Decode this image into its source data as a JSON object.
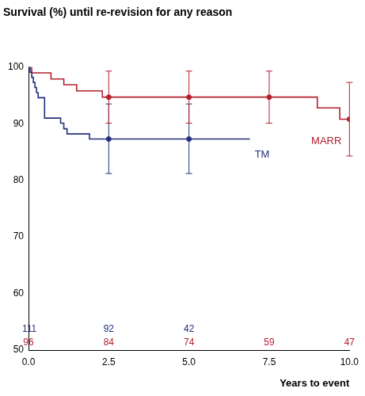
{
  "chart_data": {
    "type": "line",
    "title": "Survival (%) until re-revision for any reason",
    "x_label": "Years to event",
    "xlim": [
      0,
      10
    ],
    "xticks": [
      {
        "value": 0,
        "label": "0.0"
      },
      {
        "value": 2.5,
        "label": "2.5"
      },
      {
        "value": 5,
        "label": "5.0"
      },
      {
        "value": 7.5,
        "label": "7.5"
      },
      {
        "value": 10,
        "label": "10.0"
      }
    ],
    "ylim": [
      50,
      100
    ],
    "yticks": [
      50,
      60,
      70,
      80,
      90,
      100
    ],
    "grid": false,
    "series": [
      {
        "name": "TM",
        "color": "#23317a",
        "line_style": "step",
        "marker": "circle",
        "x": [
          0,
          0.05,
          0.1,
          0.15,
          0.2,
          0.25,
          0.3,
          0.5,
          1.0,
          1.1,
          1.2,
          1.9,
          6.9
        ],
        "values": [
          100,
          99.1,
          98.2,
          97.3,
          96.4,
          95.5,
          94.6,
          91.0,
          90.1,
          89.1,
          88.2,
          87.3,
          87.3
        ],
        "ci_x": [
          2.5,
          5
        ],
        "ci_values": [
          87.3,
          87.3
        ],
        "ci_low": [
          81.2,
          81.2
        ],
        "ci_high": [
          93.5,
          93.5
        ],
        "at_risk_x": [
          0,
          2.5,
          5
        ],
        "at_risk": [
          111,
          92,
          42
        ]
      },
      {
        "name": "MARR",
        "color": "#b5202e",
        "line_style": "step",
        "marker": "circle",
        "x": [
          0,
          0.1,
          0.7,
          1.1,
          1.5,
          2.3,
          9.0,
          9.7,
          10.0
        ],
        "values": [
          100,
          99.0,
          97.9,
          96.9,
          95.8,
          94.7,
          92.8,
          90.8,
          90.8
        ],
        "ci_x": [
          2.5,
          5,
          7.5,
          10
        ],
        "ci_values": [
          94.7,
          94.7,
          94.7,
          90.8
        ],
        "ci_low": [
          90.1,
          90.1,
          90.1,
          84.3
        ],
        "ci_high": [
          99.3,
          99.3,
          99.3,
          97.3
        ],
        "at_risk_x": [
          0,
          2.5,
          5,
          7.5,
          10
        ],
        "at_risk": [
          96,
          84,
          74,
          59,
          47
        ]
      }
    ]
  }
}
